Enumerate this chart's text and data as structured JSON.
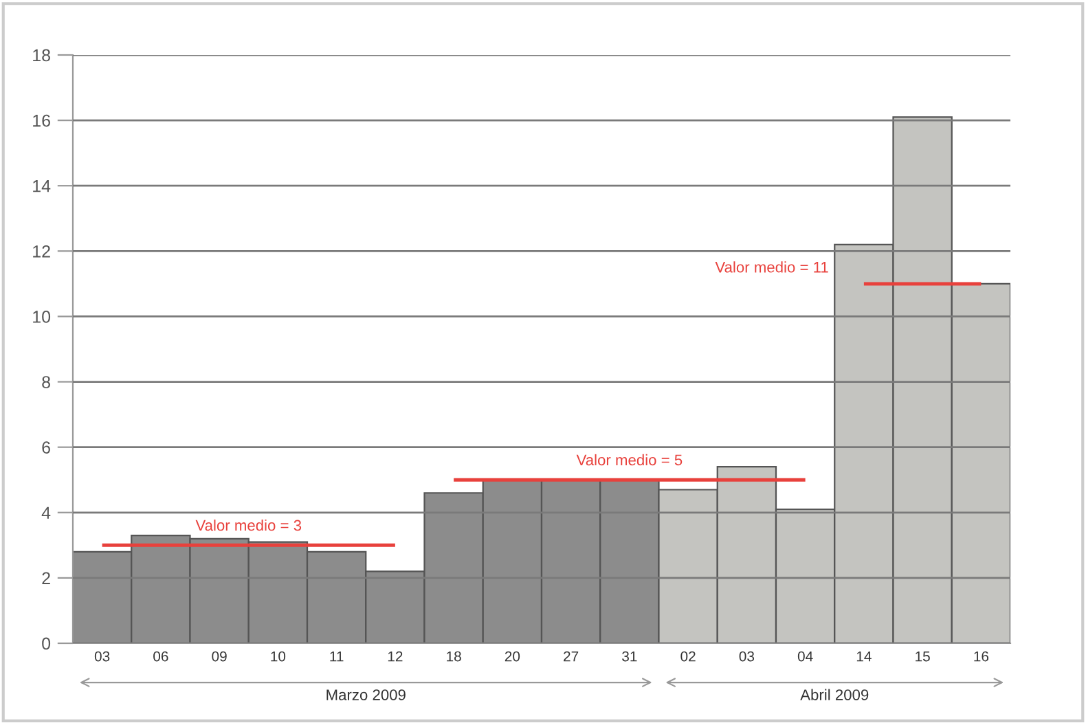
{
  "chart_data": {
    "type": "bar",
    "categories": [
      "03",
      "06",
      "09",
      "10",
      "11",
      "12",
      "18",
      "20",
      "27",
      "31",
      "02",
      "03",
      "04",
      "14",
      "15",
      "16"
    ],
    "values": [
      2.8,
      3.3,
      3.2,
      3.1,
      2.8,
      2.2,
      4.6,
      5,
      5,
      5,
      4.7,
      5.4,
      4.1,
      12.2,
      16.1,
      11
    ],
    "colors": [
      "#8c8c8c",
      "#8c8c8c",
      "#8c8c8c",
      "#8c8c8c",
      "#8c8c8c",
      "#8c8c8c",
      "#8c8c8c",
      "#8c8c8c",
      "#8c8c8c",
      "#8c8c8c",
      "#c4c4c0",
      "#c4c4c0",
      "#c4c4c0",
      "#c4c4c0",
      "#c4c4c0",
      "#c4c4c0"
    ],
    "series": [
      {
        "name": "Valor medio = 3",
        "type": "line",
        "color": "#e8413c",
        "values": [
          3,
          3,
          3,
          3,
          3,
          3,
          null,
          null,
          null,
          null,
          null,
          null,
          null,
          null,
          null,
          null
        ]
      },
      {
        "name": "Valor medio = 5",
        "type": "line",
        "color": "#e8413c",
        "values": [
          null,
          null,
          null,
          null,
          null,
          null,
          5,
          5,
          5,
          5,
          5,
          5,
          5,
          null,
          null,
          null
        ]
      },
      {
        "name": "Valor medio = 11",
        "type": "line",
        "color": "#e8413c",
        "values": [
          null,
          null,
          null,
          null,
          null,
          null,
          null,
          null,
          null,
          null,
          null,
          null,
          null,
          11,
          11,
          11
        ]
      }
    ],
    "annotations": [
      "Marzo 2009",
      "Abril 2009"
    ],
    "ylim": [
      0,
      18
    ],
    "yticks": [
      0,
      2,
      4,
      6,
      8,
      10,
      12,
      14,
      16,
      18
    ],
    "grid": "y"
  }
}
